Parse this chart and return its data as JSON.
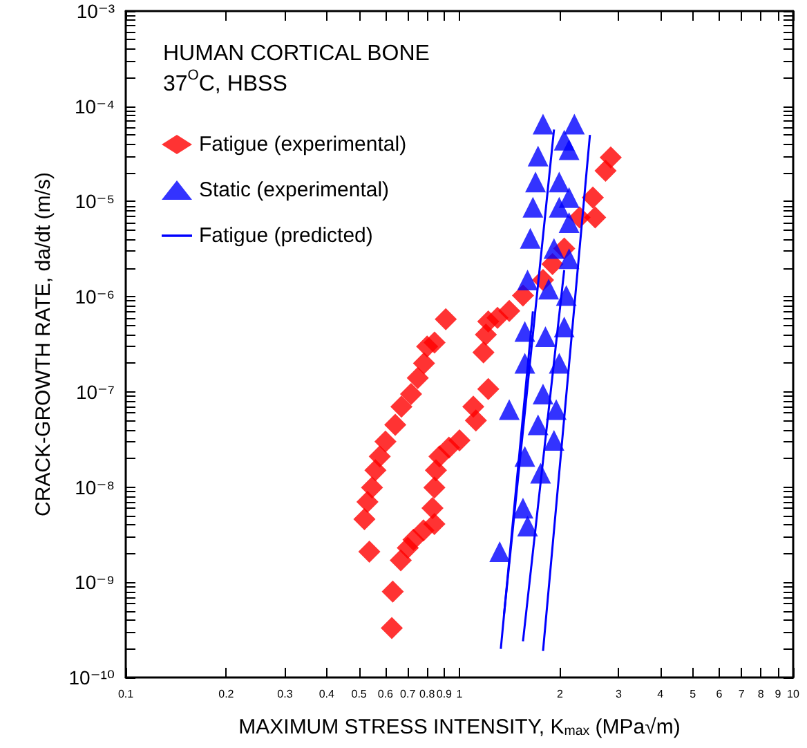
{
  "chart_data": {
    "type": "scatter",
    "title": "HUMAN CORTICAL BONE",
    "subtitle": "37$^{O}$C, HBSS",
    "xlabel": "MAXIMUM STRESS INTENSITY, K$_{max}$ (MPa√m)",
    "ylabel": "CRACK-GROWTH RATE, da/dt (m/s)",
    "log": "xy",
    "grid": false,
    "legend": "top left",
    "xlim": [
      0.1,
      10
    ],
    "ylim": [
      1e-10,
      0.001
    ],
    "xticks": [
      0.1,
      0.2,
      0.3,
      0.4,
      0.5,
      0.6,
      0.7,
      0.8,
      0.9,
      1,
      2,
      3,
      4,
      5,
      6,
      7,
      8,
      9,
      10
    ],
    "yticks": [
      {
        "value": 1e-10,
        "label": "10⁻¹⁰"
      },
      {
        "value": 2e-10,
        "label": null
      },
      {
        "value": 3e-10,
        "label": null
      },
      {
        "value": 4e-10,
        "label": null
      },
      {
        "value": 5e-10,
        "label": null
      },
      {
        "value": 6e-10,
        "label": null
      },
      {
        "value": 7e-10,
        "label": null
      },
      {
        "value": 8e-10,
        "label": null
      },
      {
        "value": 9e-10,
        "label": null
      },
      {
        "value": 1e-09,
        "label": "10⁻⁹"
      },
      {
        "value": 2e-09,
        "label": null
      },
      {
        "value": 3e-09,
        "label": null
      },
      {
        "value": 4e-09,
        "label": null
      },
      {
        "value": 5e-09,
        "label": null
      },
      {
        "value": 6e-09,
        "label": null
      },
      {
        "value": 7e-09,
        "label": null
      },
      {
        "value": 8e-09,
        "label": null
      },
      {
        "value": 9e-09,
        "label": null
      },
      {
        "value": 1e-08,
        "label": "10⁻⁸"
      },
      {
        "value": 2e-08,
        "label": null
      },
      {
        "value": 3e-08,
        "label": null
      },
      {
        "value": 4e-08,
        "label": null
      },
      {
        "value": 5e-08,
        "label": null
      },
      {
        "value": 6e-08,
        "label": null
      },
      {
        "value": 7e-08,
        "label": null
      },
      {
        "value": 8e-08,
        "label": null
      },
      {
        "value": 9e-08,
        "label": null
      },
      {
        "value": 1e-07,
        "label": "10⁻⁷"
      },
      {
        "value": 2e-07,
        "label": null
      },
      {
        "value": 3e-07,
        "label": null
      },
      {
        "value": 4e-07,
        "label": null
      },
      {
        "value": 5e-07,
        "label": null
      },
      {
        "value": 6e-07,
        "label": null
      },
      {
        "value": 7e-07,
        "label": null
      },
      {
        "value": 8e-07,
        "label": null
      },
      {
        "value": 9e-07,
        "label": null
      },
      {
        "value": 1e-06,
        "label": "10⁻⁶"
      },
      {
        "value": 2e-06,
        "label": null
      },
      {
        "value": 3e-06,
        "label": null
      },
      {
        "value": 4e-06,
        "label": null
      },
      {
        "value": 5e-06,
        "label": null
      },
      {
        "value": 6e-06,
        "label": null
      },
      {
        "value": 7e-06,
        "label": null
      },
      {
        "value": 8e-06,
        "label": null
      },
      {
        "value": 9e-06,
        "label": null
      },
      {
        "value": 1e-05,
        "label": "10⁻⁵"
      },
      {
        "value": 2e-05,
        "label": null
      },
      {
        "value": 3e-05,
        "label": null
      },
      {
        "value": 4e-05,
        "label": null
      },
      {
        "value": 5e-05,
        "label": null
      },
      {
        "value": 6e-05,
        "label": null
      },
      {
        "value": 7e-05,
        "label": null
      },
      {
        "value": 8e-05,
        "label": null
      },
      {
        "value": 9e-05,
        "label": null
      },
      {
        "value": 0.0001,
        "label": "10⁻⁴"
      },
      {
        "value": 0.0002,
        "label": null
      },
      {
        "value": 0.0003,
        "label": null
      },
      {
        "value": 0.0004,
        "label": null
      },
      {
        "value": 0.0005,
        "label": null
      },
      {
        "value": 0.0006,
        "label": null
      },
      {
        "value": 0.0007,
        "label": null
      },
      {
        "value": 0.0008,
        "label": null
      },
      {
        "value": 0.0009,
        "label": null
      },
      {
        "value": 0.001,
        "label": "10⁻³"
      }
    ],
    "series": [
      {
        "name": "Fatigue (experimental)",
        "marker": "diamond",
        "color": "#ff0000",
        "x": [
          0.537,
          0.519,
          0.53,
          0.547,
          0.56,
          0.577,
          0.6,
          0.642,
          0.67,
          0.716,
          0.75,
          0.783,
          0.8,
          0.842,
          0.91,
          0.627,
          0.631,
          0.667,
          0.7,
          0.728,
          0.78,
          0.841,
          0.83,
          0.841,
          0.85,
          0.871,
          0.93,
          1.0,
          1.12,
          1.1,
          1.22,
          1.18,
          1.2,
          1.22,
          1.3,
          1.41,
          1.55,
          1.78,
          1.9,
          2.06,
          2.29,
          2.55,
          2.51,
          2.74,
          2.84
        ],
        "values": [
          2.1e-09,
          4.6e-09,
          7e-09,
          9.9e-09,
          1.5e-08,
          2.1e-08,
          3e-08,
          4.5e-08,
          7e-08,
          9.5e-08,
          1.4e-07,
          2e-07,
          3e-07,
          3.3e-07,
          5.8e-07,
          3.3e-10,
          8e-10,
          1.7e-09,
          2.3e-09,
          2.8e-09,
          3.5e-09,
          4.1e-09,
          6e-09,
          9.9e-09,
          1.5e-08,
          2.1e-08,
          2.6e-08,
          3.1e-08,
          5e-08,
          7e-08,
          1.07e-07,
          2.6e-07,
          4e-07,
          5.5e-07,
          6e-07,
          7.1e-07,
          1.03e-06,
          1.5e-06,
          2.2e-06,
          3.2e-06,
          6.8e-06,
          6.8e-06,
          1.1e-05,
          2.1e-05,
          2.9e-05
        ]
      },
      {
        "name": "Static (experimental)",
        "marker": "triangle",
        "color": "#0000ff",
        "x": [
          1.32,
          1.41,
          1.55,
          1.57,
          1.57,
          1.57,
          1.6,
          1.63,
          1.66,
          1.69,
          1.72,
          1.78,
          1.6,
          1.75,
          1.72,
          1.78,
          1.81,
          1.85,
          1.92,
          1.99,
          1.99,
          1.92,
          1.95,
          1.99,
          2.06,
          2.09,
          2.13,
          2.13,
          2.13,
          2.13,
          2.21,
          2.06
        ],
        "values": [
          2.1e-09,
          6.5e-08,
          6e-09,
          2.1e-08,
          2e-07,
          4.3e-07,
          1.5e-06,
          4.1e-06,
          8.7e-06,
          1.6e-05,
          3e-05,
          6.5e-05,
          3.9e-09,
          1.4e-08,
          4.5e-08,
          9.5e-08,
          3.8e-07,
          1.2e-06,
          3.2e-06,
          8.7e-06,
          1.6e-05,
          3.1e-08,
          6.5e-08,
          2e-07,
          4.8e-07,
          1.03e-06,
          2.5e-06,
          6e-06,
          1.1e-05,
          3.5e-05,
          6.5e-05,
          4.4e-05
        ]
      },
      {
        "name": "Fatigue (predicted)",
        "type": "line",
        "marker": "none",
        "color": "#0000ff",
        "x": [
          1.33,
          1.66
        ],
        "values": [
          2e-10,
          7e-07
        ]
      },
      {
        "type": "line",
        "marker": "none",
        "color": "#0000ff",
        "x": [
          1.36,
          1.92
        ],
        "values": [
          4.6e-10,
          5.7e-05
        ]
      },
      {
        "type": "line",
        "marker": "none",
        "color": "#0000ff",
        "x": [
          1.55,
          2.06
        ],
        "values": [
          2.4e-10,
          1.9e-06
        ]
      },
      {
        "type": "line",
        "marker": "none",
        "color": "#0000ff",
        "x": [
          1.78,
          2.46
        ],
        "values": [
          1.9e-10,
          5e-05
        ]
      }
    ]
  }
}
